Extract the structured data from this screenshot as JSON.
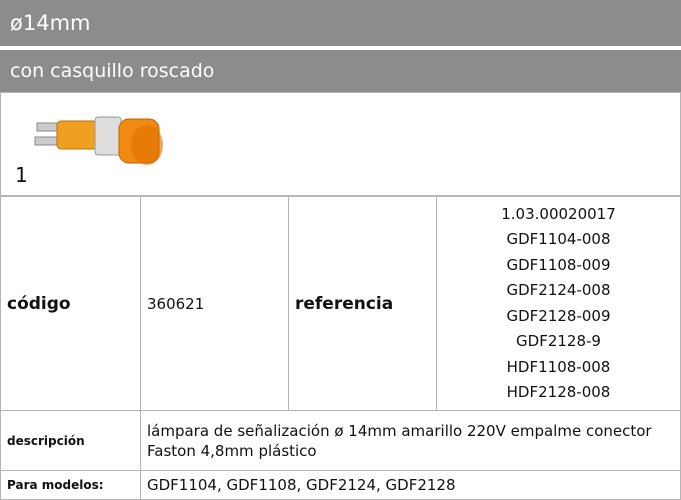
{
  "header": {
    "title": "ø14mm",
    "subtitle": "con casquillo roscado"
  },
  "product": {
    "image_label": "1"
  },
  "table": {
    "rows": [
      [
        "código",
        "360621",
        "referencia",
        [
          "1.03.00020017",
          "GDF1104-008",
          "GDF1108-009",
          "GDF2124-008",
          "GDF2128-009",
          "GDF2128-9",
          "HDF1108-008",
          "HDF2128-008"
        ]
      ],
      [
        "descripción",
        "lámpara de señalización  ø 14mm amarillo 220V empalme conector Faston 4,8mm plástico"
      ],
      [
        "Para modelos:",
        "GDF1104, GDF1108, GDF2124, GDF2128"
      ]
    ]
  }
}
